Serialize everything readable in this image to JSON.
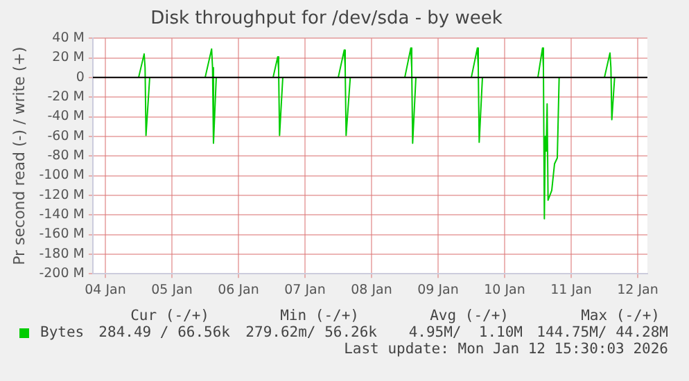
{
  "chart_data": {
    "type": "line",
    "title": "Disk throughput for /dev/sda - by week",
    "ylabel": "Pr second read (-) / write (+)",
    "xlim": [
      "2026-01-03T19:30",
      "2026-01-12T03:30"
    ],
    "xticks": [
      {
        "value": "2026-01-04",
        "label": "04 Jan"
      },
      {
        "value": "2026-01-05",
        "label": "05 Jan"
      },
      {
        "value": "2026-01-06",
        "label": "06 Jan"
      },
      {
        "value": "2026-01-07",
        "label": "07 Jan"
      },
      {
        "value": "2026-01-08",
        "label": "08 Jan"
      },
      {
        "value": "2026-01-09",
        "label": "09 Jan"
      },
      {
        "value": "2026-01-10",
        "label": "10 Jan"
      },
      {
        "value": "2026-01-11",
        "label": "11 Jan"
      },
      {
        "value": "2026-01-12",
        "label": "12 Jan"
      }
    ],
    "ylim": [
      -200,
      40
    ],
    "yticks": [
      {
        "value": 40,
        "label": "40 M"
      },
      {
        "value": 20,
        "label": "20 M"
      },
      0,
      {
        "value": -20,
        "label": "-20 M"
      },
      {
        "value": -40,
        "label": "-40 M"
      },
      {
        "value": -60,
        "label": "-60 M"
      },
      {
        "value": -80,
        "label": "-80 M"
      },
      {
        "value": -100,
        "label": "-100 M"
      },
      {
        "value": -120,
        "label": "-120 M"
      },
      {
        "value": -140,
        "label": "-140 M"
      },
      {
        "value": -160,
        "label": "-160 M"
      },
      {
        "value": -180,
        "label": "-180 M"
      },
      {
        "value": -200,
        "label": "-200 M"
      }
    ],
    "grid": true,
    "legend": "bottom left",
    "marker": "none",
    "line_style": "solid",
    "ref_lines": [
      {
        "axis": "y",
        "value": 0,
        "color": "#000000"
      }
    ],
    "series": [
      {
        "name": "Bytes",
        "color": "#00cc00",
        "x": [
          "2026-01-04T12:00",
          "2026-01-04T14:00",
          "2026-01-04T14:20",
          "2026-01-04T14:40",
          "2026-01-04T16:00",
          "2026-01-05T00:00",
          "2026-01-05T12:00",
          "2026-01-05T14:20",
          "2026-01-05T14:40",
          "2026-01-05T15:00",
          "2026-01-05T16:00",
          "2026-01-06T00:00",
          "2026-01-06T12:30",
          "2026-01-06T14:10",
          "2026-01-06T14:30",
          "2026-01-06T14:50",
          "2026-01-06T16:00",
          "2026-01-07T00:00",
          "2026-01-07T12:00",
          "2026-01-07T14:10",
          "2026-01-07T14:30",
          "2026-01-07T14:50",
          "2026-01-07T16:20",
          "2026-01-08T00:00",
          "2026-01-08T12:00",
          "2026-01-08T14:10",
          "2026-01-08T14:30",
          "2026-01-08T14:50",
          "2026-01-08T16:00",
          "2026-01-09T00:00",
          "2026-01-09T12:00",
          "2026-01-09T14:10",
          "2026-01-09T14:30",
          "2026-01-09T14:50",
          "2026-01-09T16:00",
          "2026-01-10T00:00",
          "2026-01-10T12:00",
          "2026-01-10T13:40",
          "2026-01-10T14:00",
          "2026-01-10T14:20",
          "2026-01-10T14:40",
          "2026-01-10T15:00",
          "2026-01-10T15:20",
          "2026-01-10T15:40",
          "2026-01-10T17:00",
          "2026-01-10T18:00",
          "2026-01-10T19:00",
          "2026-01-10T19:40",
          "2026-01-11T00:00",
          "2026-01-11T12:00",
          "2026-01-11T14:00",
          "2026-01-11T14:20",
          "2026-01-11T14:40",
          "2026-01-11T15:40"
        ],
        "values": [
          0,
          24,
          10,
          -59,
          0,
          null,
          0,
          29,
          10,
          -67,
          0,
          null,
          0,
          21,
          8,
          -59,
          0,
          null,
          0,
          28,
          10,
          -59,
          0,
          null,
          0,
          30,
          10,
          -67,
          0,
          null,
          0,
          30,
          10,
          -66,
          0,
          null,
          0,
          30,
          10,
          -144,
          -60,
          -75,
          -27,
          -125,
          -115,
          -88,
          -82,
          0,
          null,
          0,
          25,
          10,
          -43,
          0
        ]
      }
    ],
    "annotations": [
      "Cur (-/+)",
      "Min (-/+)",
      "Avg (-/+)",
      "Max (-/+)",
      "284.49 / 66.56k",
      "279.62m/ 56.26k",
      "4.95M/  1.10M",
      "144.75M/ 44.28M",
      "Last update: Mon Jan 12 15:30:03 2026"
    ]
  }
}
